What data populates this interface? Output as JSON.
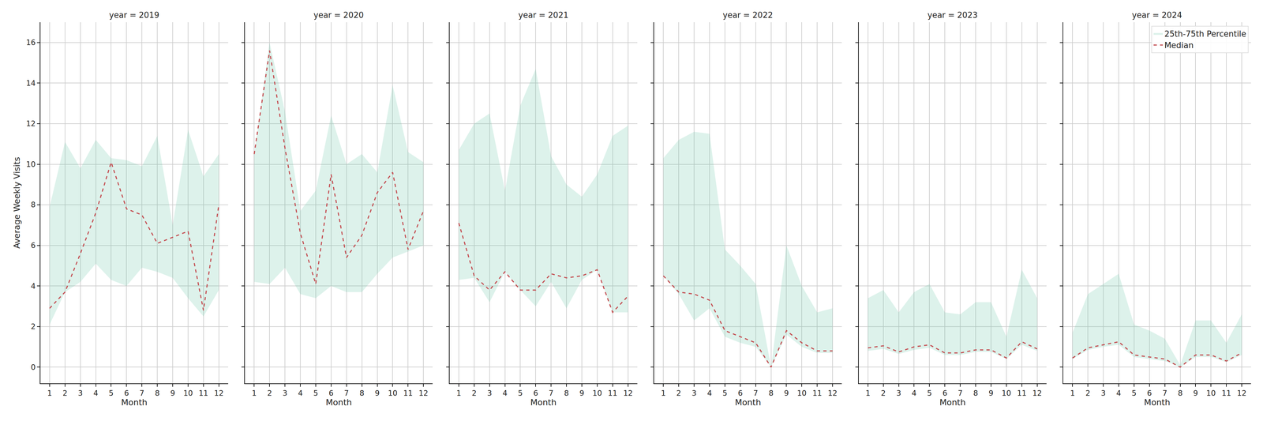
{
  "chart_data": [
    {
      "type": "line",
      "title": "year = 2019",
      "xlabel": "Month",
      "ylabel": "Average Weekly Visits",
      "x": [
        1,
        2,
        3,
        4,
        5,
        6,
        7,
        8,
        9,
        10,
        11,
        12
      ],
      "xlim": [
        0.4,
        12.6
      ],
      "xticks": [
        1,
        2,
        3,
        4,
        5,
        6,
        7,
        8,
        9,
        10,
        11,
        12
      ],
      "ylim": [
        -0.8,
        17
      ],
      "yticks": [
        0,
        2,
        4,
        6,
        8,
        10,
        12,
        14,
        16
      ],
      "grid": true,
      "series": [
        {
          "name": "Median",
          "color": "#c44e52",
          "line_style": "dashed",
          "values": [
            2.9,
            3.7,
            5.6,
            7.6,
            10.1,
            7.8,
            7.5,
            6.1,
            6.4,
            6.7,
            2.8,
            8.0
          ]
        },
        {
          "name": "25th-75th Percentile",
          "type": "band",
          "color": "#66c2a5",
          "lower": [
            2.1,
            3.7,
            4.2,
            5.1,
            4.3,
            4.0,
            4.9,
            4.7,
            4.4,
            3.4,
            2.5,
            3.8
          ],
          "upper": [
            7.9,
            11.1,
            9.8,
            11.2,
            10.3,
            10.2,
            9.9,
            11.4,
            7.0,
            11.7,
            9.4,
            10.5
          ]
        }
      ]
    },
    {
      "type": "line",
      "title": "year = 2020",
      "xlabel": "Month",
      "x": [
        1,
        2,
        3,
        4,
        5,
        6,
        7,
        8,
        9,
        10,
        11,
        12
      ],
      "xlim": [
        0.4,
        12.6
      ],
      "xticks": [
        1,
        2,
        3,
        4,
        5,
        6,
        7,
        8,
        9,
        10,
        11,
        12
      ],
      "ylim": [
        -0.8,
        17
      ],
      "yticks": [
        0,
        2,
        4,
        6,
        8,
        10,
        12,
        14,
        16
      ],
      "grid": true,
      "tick_labels": "x",
      "series": [
        {
          "name": "Median",
          "color": "#c44e52",
          "line_style": "dashed",
          "values": [
            10.5,
            15.6,
            10.8,
            6.6,
            4.1,
            9.5,
            5.4,
            6.5,
            8.6,
            9.6,
            5.8,
            7.7
          ]
        },
        {
          "name": "25th-75th Percentile",
          "type": "band",
          "color": "#66c2a5",
          "lower": [
            4.2,
            4.1,
            4.9,
            3.6,
            3.4,
            4.0,
            3.7,
            3.7,
            4.6,
            5.4,
            5.7,
            6.0
          ],
          "upper": [
            10.5,
            16.0,
            12.6,
            7.7,
            8.7,
            12.4,
            10.0,
            10.5,
            9.6,
            13.9,
            10.6,
            10.1
          ]
        }
      ]
    },
    {
      "type": "line",
      "title": "year = 2021",
      "xlabel": "Month",
      "x": [
        1,
        2,
        3,
        4,
        5,
        6,
        7,
        8,
        9,
        10,
        11,
        12
      ],
      "xlim": [
        0.4,
        12.6
      ],
      "xticks": [
        1,
        2,
        3,
        4,
        5,
        6,
        7,
        8,
        9,
        10,
        11,
        12
      ],
      "ylim": [
        -0.8,
        17
      ],
      "yticks": [
        0,
        2,
        4,
        6,
        8,
        10,
        12,
        14,
        16
      ],
      "grid": true,
      "tick_labels": "x",
      "series": [
        {
          "name": "Median",
          "color": "#c44e52",
          "line_style": "dashed",
          "values": [
            7.1,
            4.5,
            3.8,
            4.7,
            3.8,
            3.8,
            4.6,
            4.4,
            4.5,
            4.8,
            2.7,
            3.5
          ]
        },
        {
          "name": "25th-75th Percentile",
          "type": "band",
          "color": "#66c2a5",
          "lower": [
            4.3,
            4.4,
            3.2,
            4.7,
            3.8,
            3.0,
            4.2,
            2.9,
            4.3,
            4.8,
            2.7,
            2.7
          ],
          "upper": [
            10.7,
            12.0,
            12.5,
            8.7,
            12.9,
            14.7,
            10.4,
            9.0,
            8.4,
            9.5,
            11.4,
            11.9
          ]
        }
      ]
    },
    {
      "type": "line",
      "title": "year = 2022",
      "xlabel": "Month",
      "x": [
        1,
        2,
        3,
        4,
        5,
        6,
        7,
        8,
        9,
        10,
        11,
        12
      ],
      "xlim": [
        0.4,
        12.6
      ],
      "xticks": [
        1,
        2,
        3,
        4,
        5,
        6,
        7,
        8,
        9,
        10,
        11,
        12
      ],
      "ylim": [
        -0.8,
        17
      ],
      "yticks": [
        0,
        2,
        4,
        6,
        8,
        10,
        12,
        14,
        16
      ],
      "grid": true,
      "tick_labels": "x",
      "series": [
        {
          "name": "Median",
          "color": "#c44e52",
          "line_style": "dashed",
          "values": [
            4.5,
            3.7,
            3.6,
            3.3,
            1.8,
            1.5,
            1.2,
            0.0,
            1.8,
            1.2,
            0.8,
            0.8
          ]
        },
        {
          "name": "25th-75th Percentile",
          "type": "band",
          "color": "#66c2a5",
          "lower": [
            4.5,
            3.6,
            2.3,
            2.9,
            1.5,
            1.2,
            1.0,
            0.0,
            1.6,
            1.0,
            0.7,
            0.7
          ],
          "upper": [
            10.3,
            11.2,
            11.6,
            11.5,
            5.8,
            5.0,
            4.1,
            0.0,
            6.0,
            4.0,
            2.7,
            2.9
          ]
        }
      ]
    },
    {
      "type": "line",
      "title": "year = 2023",
      "xlabel": "Month",
      "x": [
        1,
        2,
        3,
        4,
        5,
        6,
        7,
        8,
        9,
        10,
        11,
        12
      ],
      "xlim": [
        0.4,
        12.6
      ],
      "xticks": [
        1,
        2,
        3,
        4,
        5,
        6,
        7,
        8,
        9,
        10,
        11,
        12
      ],
      "ylim": [
        -0.8,
        17
      ],
      "yticks": [
        0,
        2,
        4,
        6,
        8,
        10,
        12,
        14,
        16
      ],
      "grid": true,
      "tick_labels": "x",
      "series": [
        {
          "name": "Median",
          "color": "#c44e52",
          "line_style": "dashed",
          "values": [
            0.95,
            1.05,
            0.75,
            1.0,
            1.1,
            0.7,
            0.7,
            0.85,
            0.85,
            0.45,
            1.25,
            0.9
          ]
        },
        {
          "name": "25th-75th Percentile",
          "type": "band",
          "color": "#66c2a5",
          "lower": [
            0.8,
            0.9,
            0.65,
            0.85,
            0.95,
            0.6,
            0.6,
            0.75,
            0.75,
            0.4,
            1.1,
            0.8
          ],
          "upper": [
            3.4,
            3.8,
            2.7,
            3.7,
            4.1,
            2.7,
            2.6,
            3.2,
            3.2,
            1.5,
            4.8,
            3.4
          ]
        }
      ]
    },
    {
      "type": "line",
      "title": "year = 2024",
      "xlabel": "Month",
      "x": [
        1,
        2,
        3,
        4,
        5,
        6,
        7,
        8,
        9,
        10,
        11,
        12
      ],
      "xlim": [
        0.4,
        12.6
      ],
      "xticks": [
        1,
        2,
        3,
        4,
        5,
        6,
        7,
        8,
        9,
        10,
        11,
        12
      ],
      "ylim": [
        -0.8,
        17
      ],
      "yticks": [
        0,
        2,
        4,
        6,
        8,
        10,
        12,
        14,
        16
      ],
      "grid": true,
      "tick_labels": "x",
      "legend": "upper right",
      "series": [
        {
          "name": "Median",
          "color": "#c44e52",
          "line_style": "dashed",
          "values": [
            0.45,
            0.95,
            1.1,
            1.25,
            0.6,
            0.5,
            0.4,
            0.0,
            0.6,
            0.6,
            0.3,
            0.7
          ]
        },
        {
          "name": "25th-75th Percentile",
          "type": "band",
          "color": "#66c2a5",
          "lower": [
            0.4,
            0.85,
            1.0,
            1.1,
            0.5,
            0.4,
            0.3,
            0.0,
            0.5,
            0.5,
            0.25,
            0.6
          ],
          "upper": [
            1.7,
            3.6,
            4.1,
            4.6,
            2.1,
            1.8,
            1.4,
            0.1,
            2.3,
            2.3,
            1.2,
            2.6
          ]
        }
      ]
    }
  ]
}
